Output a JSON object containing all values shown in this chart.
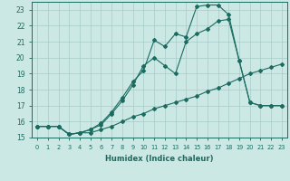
{
  "xlabel": "Humidex (Indice chaleur)",
  "background_color": "#cce8e4",
  "grid_color": "#a8ccc8",
  "line_color": "#1a6b60",
  "xlim": [
    -0.5,
    23.5
  ],
  "ylim": [
    15,
    23.5
  ],
  "xticks": [
    0,
    1,
    2,
    3,
    4,
    5,
    6,
    7,
    8,
    9,
    10,
    11,
    12,
    13,
    14,
    15,
    16,
    17,
    18,
    19,
    20,
    21,
    22,
    23
  ],
  "yticks": [
    15,
    16,
    17,
    18,
    19,
    20,
    21,
    22,
    23
  ],
  "line1_x": [
    0,
    1,
    2,
    3,
    4,
    5,
    6,
    7,
    8,
    9,
    10,
    11,
    12,
    13,
    14,
    15,
    16,
    17,
    18,
    19,
    20,
    21,
    22,
    23
  ],
  "line1_y": [
    15.7,
    15.7,
    15.7,
    15.2,
    15.3,
    15.3,
    15.5,
    15.7,
    16.0,
    16.3,
    16.5,
    16.8,
    17.0,
    17.2,
    17.4,
    17.6,
    17.9,
    18.1,
    18.4,
    18.7,
    19.0,
    19.2,
    19.4,
    19.6
  ],
  "line2_x": [
    0,
    1,
    2,
    3,
    4,
    5,
    6,
    7,
    8,
    9,
    10,
    11,
    12,
    13,
    14,
    15,
    16,
    17,
    18,
    19,
    20,
    21,
    22,
    23
  ],
  "line2_y": [
    15.7,
    15.7,
    15.7,
    15.2,
    15.3,
    15.5,
    15.8,
    16.5,
    17.3,
    18.3,
    19.5,
    20.0,
    19.5,
    19.0,
    21.0,
    21.5,
    21.8,
    22.3,
    22.4,
    19.8,
    17.2,
    17.0,
    17.0,
    17.0
  ],
  "line3_x": [
    0,
    1,
    2,
    3,
    4,
    5,
    6,
    7,
    8,
    9,
    10,
    11,
    12,
    13,
    14,
    15,
    16,
    17,
    18,
    19,
    20,
    21,
    22,
    23
  ],
  "line3_y": [
    15.7,
    15.7,
    15.7,
    15.2,
    15.3,
    15.5,
    15.9,
    16.6,
    17.5,
    18.5,
    19.2,
    21.1,
    20.7,
    21.5,
    21.3,
    23.2,
    23.3,
    23.3,
    22.7,
    19.8,
    17.2,
    17.0,
    17.0,
    17.0
  ]
}
